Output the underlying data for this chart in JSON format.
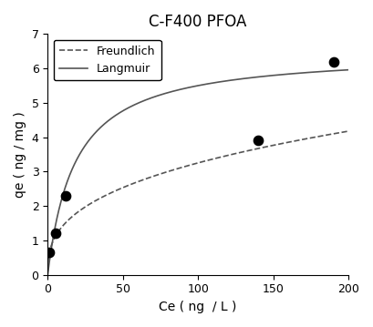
{
  "title": "C-F400 PFOA",
  "xlabel": "Ce ( ng  / L )",
  "ylabel": "qe ( ng / mg )",
  "xlim": [
    0,
    200
  ],
  "ylim": [
    0,
    7
  ],
  "xticks": [
    0,
    50,
    100,
    150,
    200
  ],
  "yticks": [
    0,
    1,
    2,
    3,
    4,
    5,
    6,
    7
  ],
  "scatter_x": [
    1.0,
    5.0,
    12.0,
    140.0,
    190.0
  ],
  "scatter_y": [
    0.65,
    1.2,
    2.3,
    3.9,
    6.2
  ],
  "scatter_color": "#000000",
  "scatter_size": 55,
  "langmuir_qmax": 6.5,
  "langmuir_KL": 0.055,
  "freundlich_Kf": 0.62,
  "freundlich_n": 0.36,
  "line_color": "#555555",
  "legend_freundlich": "Freundlich",
  "legend_langmuir": "Langmuir",
  "title_fontsize": 12,
  "axis_label_fontsize": 10,
  "tick_fontsize": 9,
  "legend_fontsize": 9
}
